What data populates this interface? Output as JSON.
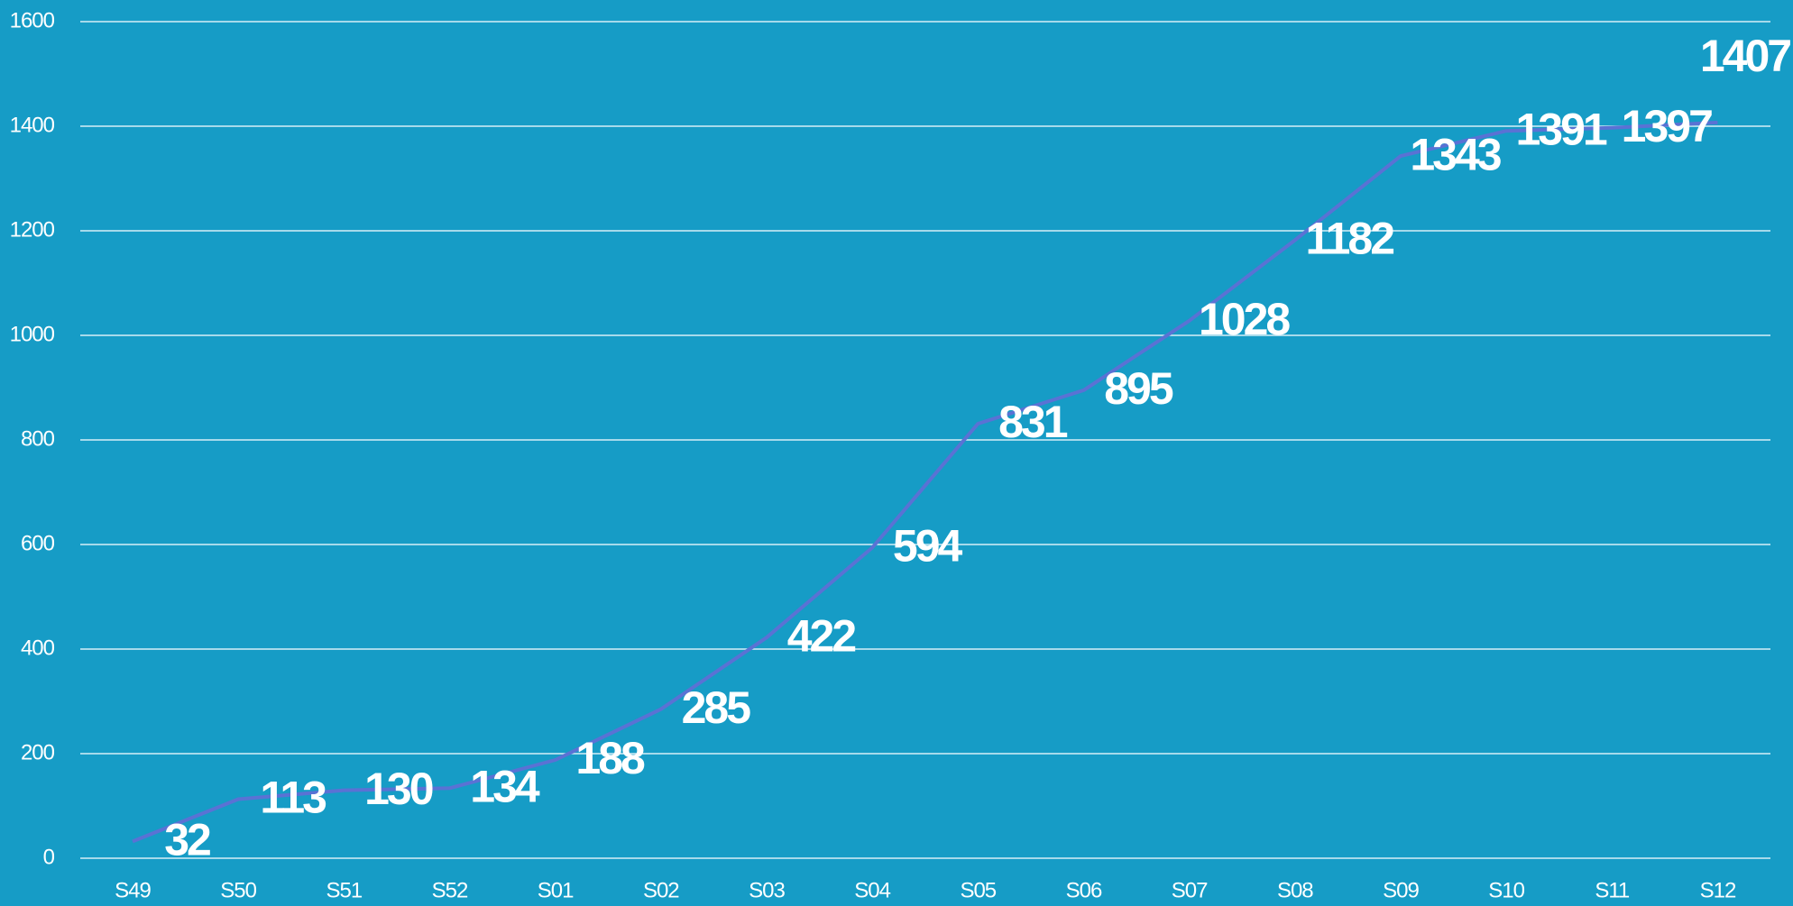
{
  "chart_data": {
    "type": "line",
    "categories": [
      "S49",
      "S50",
      "S51",
      "S52",
      "S01",
      "S02",
      "S03",
      "S04",
      "S05",
      "S06",
      "S07",
      "S08",
      "S09",
      "S10",
      "S11",
      "S12"
    ],
    "series": [
      {
        "color": "#5a72d4",
        "values": [
          32,
          113,
          130,
          134,
          188,
          285,
          422,
          594,
          831,
          895,
          1028,
          1182,
          1343,
          1391,
          1397,
          1407
        ]
      }
    ],
    "ylim": [
      0,
      1600
    ],
    "yticks": [
      0,
      200,
      400,
      600,
      800,
      1000,
      1200,
      1400,
      1600
    ],
    "grid": true
  }
}
